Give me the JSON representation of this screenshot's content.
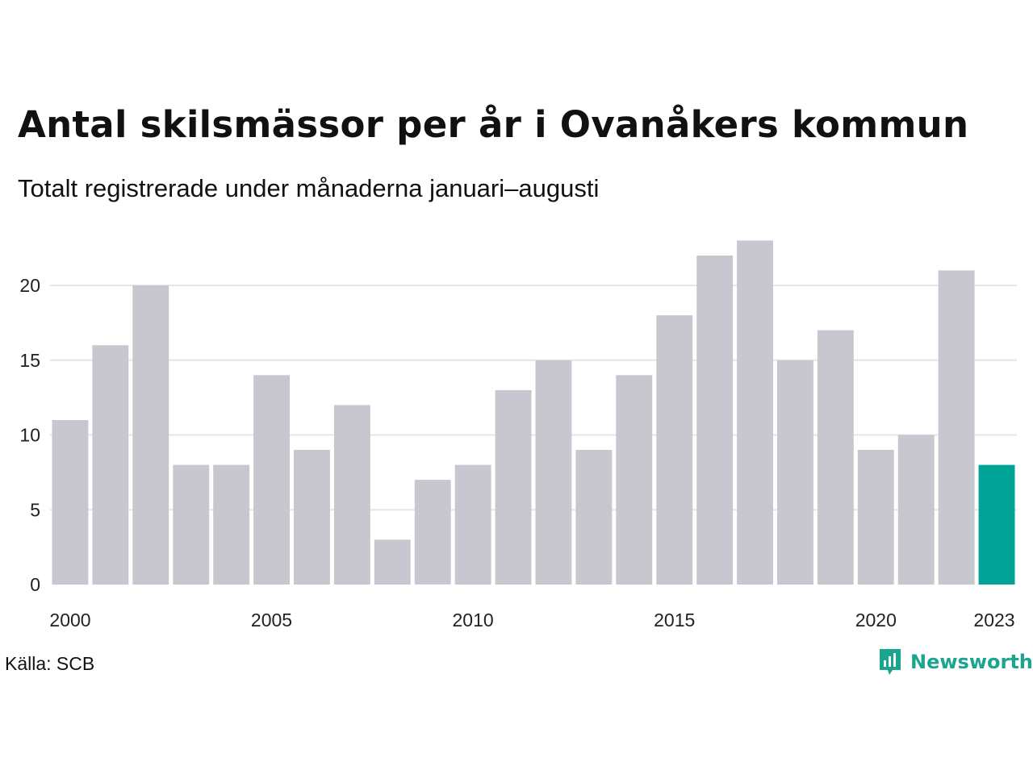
{
  "title": "Antal skilsmässor per år i Ovanåkers kommun",
  "subtitle": "Totalt registrerade under månaderna januari–augusti",
  "source": "Källa: SCB",
  "brand": {
    "name": "Newsworthy",
    "color": "#1aa58f"
  },
  "chart_data": {
    "type": "bar",
    "categories": [
      "2000",
      "2001",
      "2002",
      "2003",
      "2004",
      "2005",
      "2006",
      "2007",
      "2008",
      "2009",
      "2010",
      "2011",
      "2012",
      "2013",
      "2014",
      "2015",
      "2016",
      "2017",
      "2018",
      "2019",
      "2020",
      "2021",
      "2022",
      "2023"
    ],
    "values": [
      11,
      16,
      20,
      8,
      8,
      14,
      9,
      12,
      3,
      7,
      8,
      13,
      15,
      9,
      14,
      18,
      22,
      23,
      15,
      17,
      9,
      10,
      21,
      8
    ],
    "x_tick_labels": [
      "2000",
      "2005",
      "2010",
      "2015",
      "2020",
      "2023"
    ],
    "y_ticks": [
      0,
      5,
      10,
      15,
      20
    ],
    "ylim": [
      0,
      23
    ],
    "grid": true,
    "colors": {
      "bar": "#c8c7cf",
      "highlight": "#00a396",
      "grid": "#e6e6e6"
    },
    "highlight_category": "2023"
  }
}
